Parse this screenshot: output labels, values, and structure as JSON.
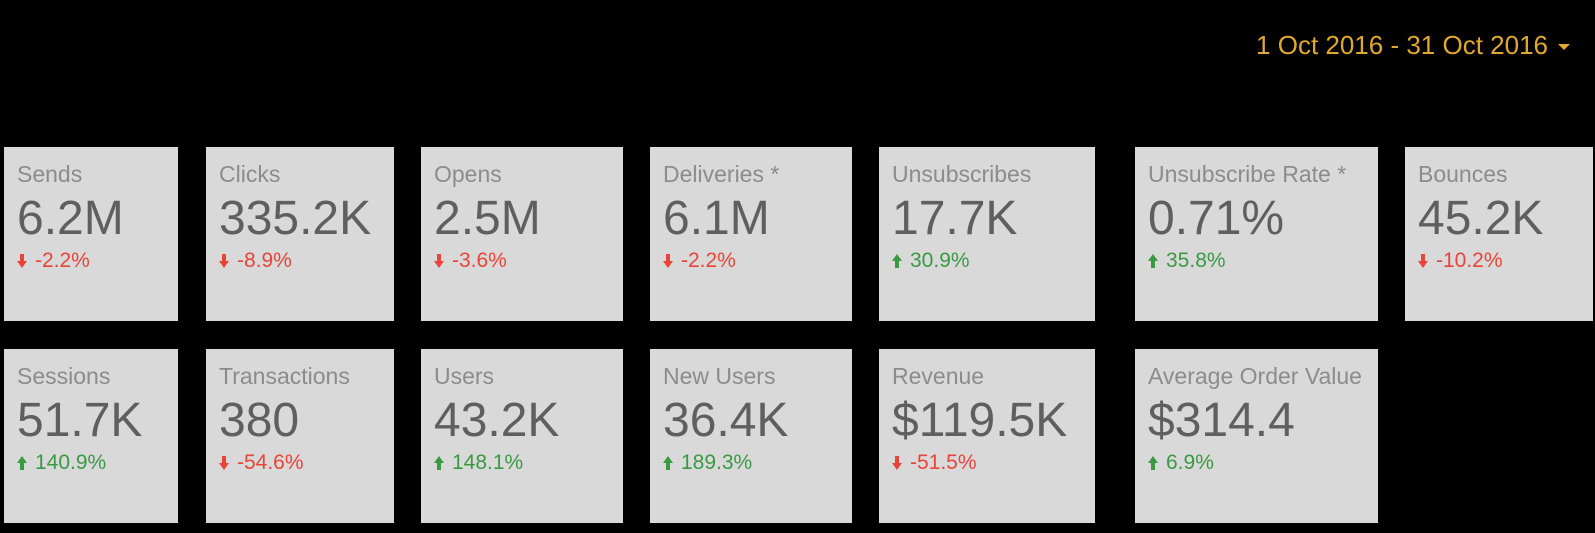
{
  "date_range": {
    "label": "1 Oct 2016 - 31 Oct 2016"
  },
  "colors": {
    "background": "#000000",
    "card": "#d9d9d9",
    "accent": "#e0a82e",
    "negative": "#e8443a",
    "positive": "#3a9a44"
  },
  "scorecards": [
    {
      "label": "Sends",
      "value": "6.2M",
      "delta": "-2.2%",
      "direction": "down"
    },
    {
      "label": "Clicks",
      "value": "335.2K",
      "delta": "-8.9%",
      "direction": "down"
    },
    {
      "label": "Opens",
      "value": "2.5M",
      "delta": "-3.6%",
      "direction": "down"
    },
    {
      "label": "Deliveries *",
      "value": "6.1M",
      "delta": "-2.2%",
      "direction": "down"
    },
    {
      "label": "Unsubscribes",
      "value": "17.7K",
      "delta": "30.9%",
      "direction": "up"
    },
    {
      "label": "Unsubscribe Rate *",
      "value": "0.71%",
      "delta": "35.8%",
      "direction": "up"
    },
    {
      "label": "Bounces",
      "value": "45.2K",
      "delta": "-10.2%",
      "direction": "down"
    },
    {
      "label": "Sessions",
      "value": "51.7K",
      "delta": "140.9%",
      "direction": "up"
    },
    {
      "label": "Transactions",
      "value": "380",
      "delta": "-54.6%",
      "direction": "down"
    },
    {
      "label": "Users",
      "value": "43.2K",
      "delta": "148.1%",
      "direction": "up"
    },
    {
      "label": "New Users",
      "value": "36.4K",
      "delta": "189.3%",
      "direction": "up"
    },
    {
      "label": "Revenue",
      "value": "$119.5K",
      "delta": "-51.5%",
      "direction": "down"
    },
    {
      "label": "Average Order Value",
      "value": "$314.4",
      "delta": "6.9%",
      "direction": "up"
    }
  ]
}
